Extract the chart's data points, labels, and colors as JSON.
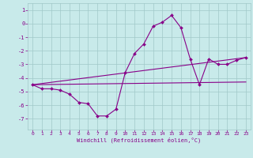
{
  "xlabel": "Windchill (Refroidissement éolien,°C)",
  "bg_color": "#c8eaea",
  "grid_color": "#a0c8c8",
  "line_color": "#880088",
  "xlim": [
    -0.5,
    23.5
  ],
  "ylim": [
    -7.8,
    1.5
  ],
  "yticks": [
    1,
    0,
    -1,
    -2,
    -3,
    -4,
    -5,
    -6,
    -7
  ],
  "xticks": [
    0,
    1,
    2,
    3,
    4,
    5,
    6,
    7,
    8,
    9,
    10,
    11,
    12,
    13,
    14,
    15,
    16,
    17,
    18,
    19,
    20,
    21,
    22,
    23
  ],
  "series_main": [
    [
      0,
      -4.5
    ],
    [
      1,
      -4.8
    ],
    [
      2,
      -4.8
    ],
    [
      3,
      -4.9
    ],
    [
      4,
      -5.2
    ],
    [
      5,
      -5.8
    ],
    [
      6,
      -5.9
    ],
    [
      7,
      -6.8
    ],
    [
      8,
      -6.8
    ],
    [
      9,
      -6.3
    ],
    [
      10,
      -3.6
    ],
    [
      11,
      -2.2
    ],
    [
      12,
      -1.5
    ],
    [
      13,
      -0.2
    ],
    [
      14,
      0.1
    ],
    [
      15,
      0.6
    ],
    [
      16,
      -0.3
    ],
    [
      17,
      -2.6
    ],
    [
      18,
      -4.5
    ],
    [
      19,
      -2.6
    ],
    [
      20,
      -3.0
    ],
    [
      21,
      -3.0
    ],
    [
      22,
      -2.7
    ],
    [
      23,
      -2.5
    ]
  ],
  "series_flat": [
    [
      0,
      -4.5
    ],
    [
      23,
      -4.3
    ]
  ],
  "series_rising": [
    [
      0,
      -4.5
    ],
    [
      23,
      -2.5
    ]
  ]
}
